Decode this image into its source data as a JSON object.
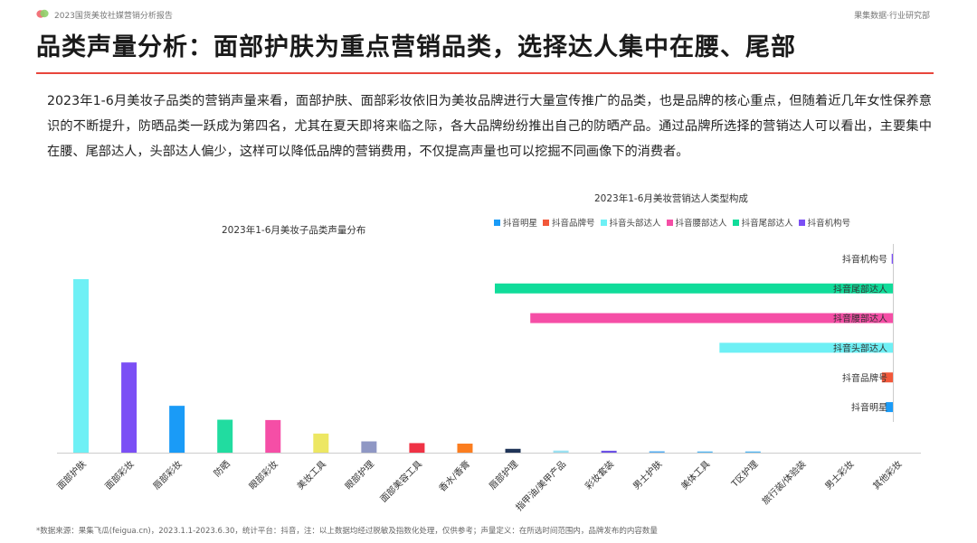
{
  "header": {
    "report_name": "2023国货美妆社媒营销分析报告",
    "brand": "果集数据·行业研究部"
  },
  "page": {
    "title": "品类声量分析：面部护肤为重点营销品类，选择达人集中在腰、尾部",
    "body": "2023年1-6月美妆子品类的营销声量来看，面部护肤、面部彩妆依旧为美妆品牌进行大量宣传推广的品类，也是品牌的核心重点，但随着近几年女性保养意识的不断提升，防晒品类一跃成为第四名，尤其在夏天即将来临之际，各大品牌纷纷推出自己的防晒产品。通过品牌所选择的营销达人可以看出，主要集中在腰、尾部达人，头部达人偏少，这样可以降低品牌的营销费用，不仅提高声量也可以挖掘不同画像下的消费者。"
  },
  "footnote": "*数据来源：果集飞瓜(feigua.cn)，2023.1.1-2023.6.30，统计平台：抖音，注：以上数据均经过脱敏及指数化处理，仅供参考；声量定义：在所选时间范围内，品牌发布的内容数量",
  "chart_data": [
    {
      "type": "bar",
      "title": "2023年1-6月美妆子品类声量分布",
      "categories": [
        "面部护肤",
        "面部彩妆",
        "唇部彩妆",
        "防晒",
        "眼部彩妆",
        "美妆工具",
        "眼部护理",
        "面部美容工具",
        "香水/香膏",
        "唇部护理",
        "指甲油/美甲产品",
        "彩妆套装",
        "男士护肤",
        "美体工具",
        "T区护理",
        "旅行装/体验装",
        "男士彩妆",
        "其他彩妆"
      ],
      "values": [
        100,
        52,
        27,
        19,
        18.8,
        11,
        6.5,
        5.5,
        5.2,
        2.2,
        1.2,
        1.1,
        0.8,
        0.7,
        0.7,
        0,
        0,
        0
      ],
      "colors": [
        "#6ef0f5",
        "#7b4ff5",
        "#1a9bf7",
        "#21dca0",
        "#f54ea6",
        "#ede763",
        "#8f97c4",
        "#ef3245",
        "#fb7d1f",
        "#1f3457",
        "#9ae1f2",
        "#6b50e6",
        "#58aff2",
        "#58b8f2",
        "#58b8f2",
        "#58b8f2",
        "#58b8f2",
        "#58b8f2"
      ],
      "ylim": [
        0,
        100
      ],
      "grid": false
    },
    {
      "type": "bar",
      "orientation": "horizontal",
      "title": "2023年1-6月美妆营销达人类型构成",
      "categories": [
        "抖音明星",
        "抖音品牌号",
        "抖音头部达人",
        "抖音腰部达人",
        "抖音尾部达人",
        "抖音机构号"
      ],
      "values": [
        1.8,
        2.8,
        44,
        92,
        101,
        0.3
      ],
      "colors": [
        "#1a9bf7",
        "#f2583a",
        "#6ef0f5",
        "#f54ea6",
        "#10dc9a",
        "#7b4ff5"
      ],
      "legend": [
        "抖音明星",
        "抖音品牌号",
        "抖音头部达人",
        "抖音腰部达人",
        "抖音尾部达人",
        "抖音机构号"
      ],
      "legend_position": "top",
      "xlim": [
        0,
        101
      ],
      "grid": false
    }
  ]
}
